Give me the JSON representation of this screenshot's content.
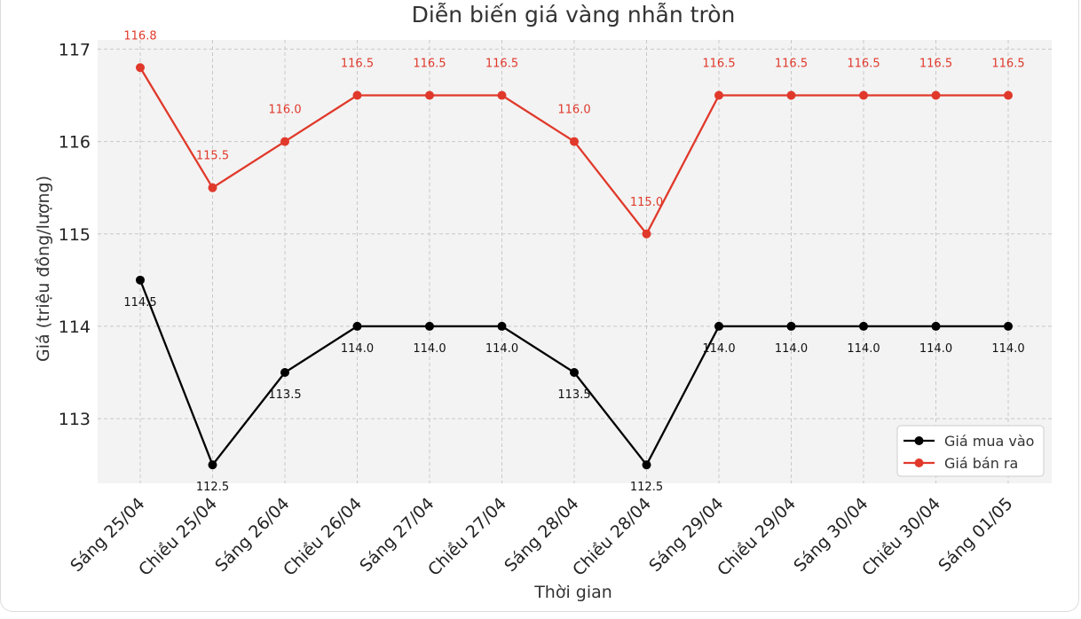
{
  "chart_data": {
    "type": "line",
    "title": "Diễn biến giá vàng nhẫn tròn",
    "xlabel": "Thời gian",
    "ylabel": "Giá (triệu đồng/lượng)",
    "ylim": [
      112.3,
      117.1
    ],
    "yticks": [
      113,
      114,
      115,
      116,
      117
    ],
    "grid": true,
    "legend_position": "bottom-right",
    "categories": [
      "Sáng 25/04",
      "Chiều 25/04",
      "Sáng 26/04",
      "Chiều 26/04",
      "Sáng 27/04",
      "Chiều 27/04",
      "Sáng 28/04",
      "Chiều 28/04",
      "Sáng 29/04",
      "Chiều 29/04",
      "Sáng 30/04",
      "Chiều 30/04",
      "Sáng 01/05"
    ],
    "series": [
      {
        "name": "Giá mua vào",
        "color": "#000000",
        "values": [
          114.5,
          112.5,
          113.5,
          114.0,
          114.0,
          114.0,
          113.5,
          112.5,
          114.0,
          114.0,
          114.0,
          114.0,
          114.0
        ],
        "labels": [
          "114.5",
          "112.5",
          "113.5",
          "114.0",
          "114.0",
          "114.0",
          "113.5",
          "112.5",
          "114.0",
          "114.0",
          "114.0",
          "114.0",
          "114.0"
        ],
        "label_side": "below"
      },
      {
        "name": "Giá bán ra",
        "color": "#e0392b",
        "values": [
          116.8,
          115.5,
          116.0,
          116.5,
          116.5,
          116.5,
          116.0,
          115.0,
          116.5,
          116.5,
          116.5,
          116.5,
          116.5
        ],
        "labels": [
          "116.8",
          "115.5",
          "116.0",
          "116.5",
          "116.5",
          "116.5",
          "116.0",
          "115.0",
          "116.5",
          "116.5",
          "116.5",
          "116.5",
          "116.5"
        ],
        "label_side": "above"
      }
    ]
  }
}
